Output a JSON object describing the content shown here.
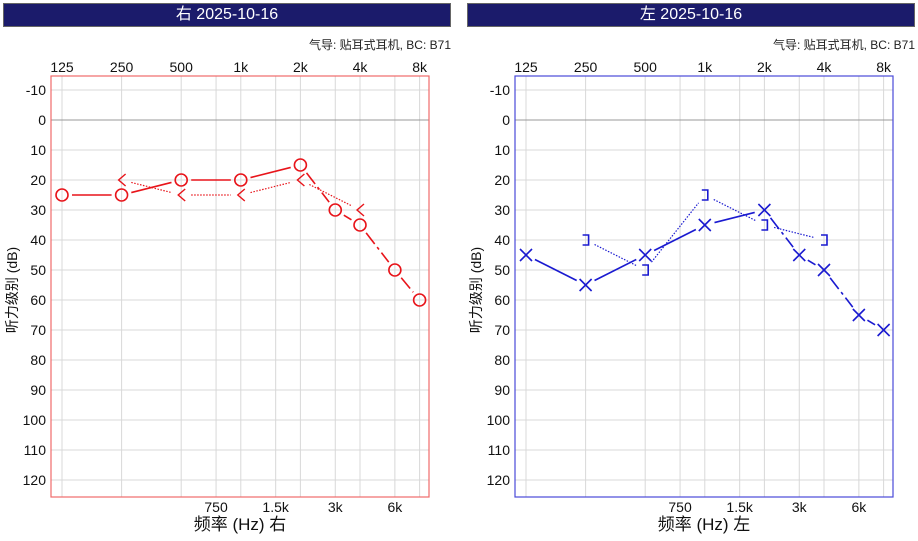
{
  "chart_data": [
    {
      "type": "line",
      "title": "右 2025-10-16",
      "subtitle": "气导: 贴耳式耳机, BC: B71",
      "xlabel": "频率 (Hz) 右",
      "ylabel": "听力级别 (dB)",
      "x_scale": "log2",
      "x_ticks_top": [
        "125",
        "250",
        "500",
        "1k",
        "2k",
        "4k",
        "8k"
      ],
      "x_ticks_bottom": [
        "750",
        "1.5k",
        "3k",
        "6k"
      ],
      "y_ticks": [
        "-10",
        "0",
        "10",
        "20",
        "30",
        "40",
        "50",
        "60",
        "70",
        "80",
        "90",
        "100",
        "110",
        "120"
      ],
      "ylim": [
        -15,
        125
      ],
      "y_inverted": true,
      "grid": true,
      "color": "#e8141a",
      "frame_color": "#f06a6a",
      "series": [
        {
          "marker": "circle",
          "style": "solid",
          "x": [
            125,
            250,
            500,
            1000,
            2000,
            3000,
            4000,
            6000,
            8000
          ],
          "y": [
            25,
            25,
            20,
            20,
            15,
            30,
            35,
            50,
            60
          ]
        },
        {
          "marker": "less-than",
          "style": "dotted",
          "x": [
            250,
            500,
            1000,
            2000,
            4000
          ],
          "y": [
            20,
            25,
            25,
            20,
            30
          ]
        }
      ]
    },
    {
      "type": "line",
      "title": "左 2025-10-16",
      "subtitle": "气导: 贴耳式耳机, BC: B71",
      "xlabel": "频率 (Hz) 左",
      "ylabel": "听力级别 (dB)",
      "x_scale": "log2",
      "x_ticks_top": [
        "125",
        "250",
        "500",
        "1k",
        "2k",
        "4k",
        "8k"
      ],
      "x_ticks_bottom": [
        "750",
        "1.5k",
        "3k",
        "6k"
      ],
      "y_ticks": [
        "-10",
        "0",
        "10",
        "20",
        "30",
        "40",
        "50",
        "60",
        "70",
        "80",
        "90",
        "100",
        "110",
        "120"
      ],
      "ylim": [
        -15,
        125
      ],
      "y_inverted": true,
      "grid": true,
      "color": "#1a1ad0",
      "frame_color": "#4a4ad8",
      "series": [
        {
          "marker": "x",
          "style": "solid",
          "x": [
            125,
            250,
            500,
            1000,
            2000,
            3000,
            4000,
            6000,
            8000
          ],
          "y": [
            45,
            55,
            45,
            35,
            30,
            45,
            50,
            65,
            70
          ]
        },
        {
          "marker": "bracket",
          "style": "dotted",
          "x": [
            250,
            500,
            1000,
            2000,
            4000
          ],
          "y": [
            40,
            50,
            25,
            35,
            40
          ]
        }
      ]
    }
  ]
}
